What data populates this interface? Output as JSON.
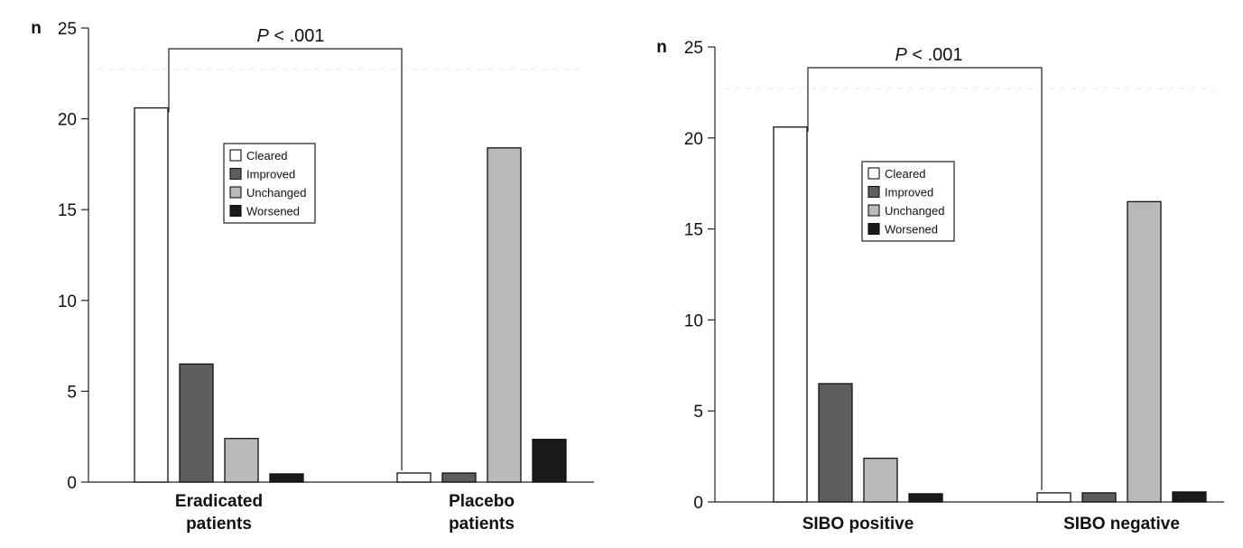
{
  "chart_data": [
    {
      "type": "bar",
      "ylabel": "n",
      "ylim": [
        0,
        25
      ],
      "yticks": [
        0,
        5,
        10,
        15,
        20,
        25
      ],
      "categories": [
        "Eradicated patients",
        "Placebo patients"
      ],
      "category_lines": [
        [
          "Eradicated",
          "patients"
        ],
        [
          "Placebo",
          "patients"
        ]
      ],
      "series": [
        {
          "name": "Cleared",
          "color": "#ffffff",
          "values": [
            20.6,
            0.5
          ]
        },
        {
          "name": "Improved",
          "color": "#5e5e5e",
          "values": [
            6.5,
            0.5
          ]
        },
        {
          "name": "Unchanged",
          "color": "#b9b9b9",
          "values": [
            2.4,
            18.4
          ]
        },
        {
          "name": "Worsened",
          "color": "#1a1a1a",
          "values": [
            0.45,
            2.35
          ]
        }
      ],
      "annotation": "P < .001",
      "grid": false,
      "legend_position": "top-center"
    },
    {
      "type": "bar",
      "ylabel": "n",
      "ylim": [
        0,
        25
      ],
      "yticks": [
        0,
        5,
        10,
        15,
        20,
        25
      ],
      "categories": [
        "SIBO positive",
        "SIBO negative"
      ],
      "category_lines": [
        [
          "SIBO positive"
        ],
        [
          "SIBO negative"
        ]
      ],
      "series": [
        {
          "name": "Cleared",
          "color": "#ffffff",
          "values": [
            20.6,
            0.5
          ]
        },
        {
          "name": "Improved",
          "color": "#5e5e5e",
          "values": [
            6.5,
            0.5
          ]
        },
        {
          "name": "Unchanged",
          "color": "#b9b9b9",
          "values": [
            2.4,
            16.5
          ]
        },
        {
          "name": "Worsened",
          "color": "#1a1a1a",
          "values": [
            0.45,
            0.55
          ]
        }
      ],
      "annotation": "P < .001",
      "grid": false,
      "legend_position": "top-center"
    }
  ]
}
